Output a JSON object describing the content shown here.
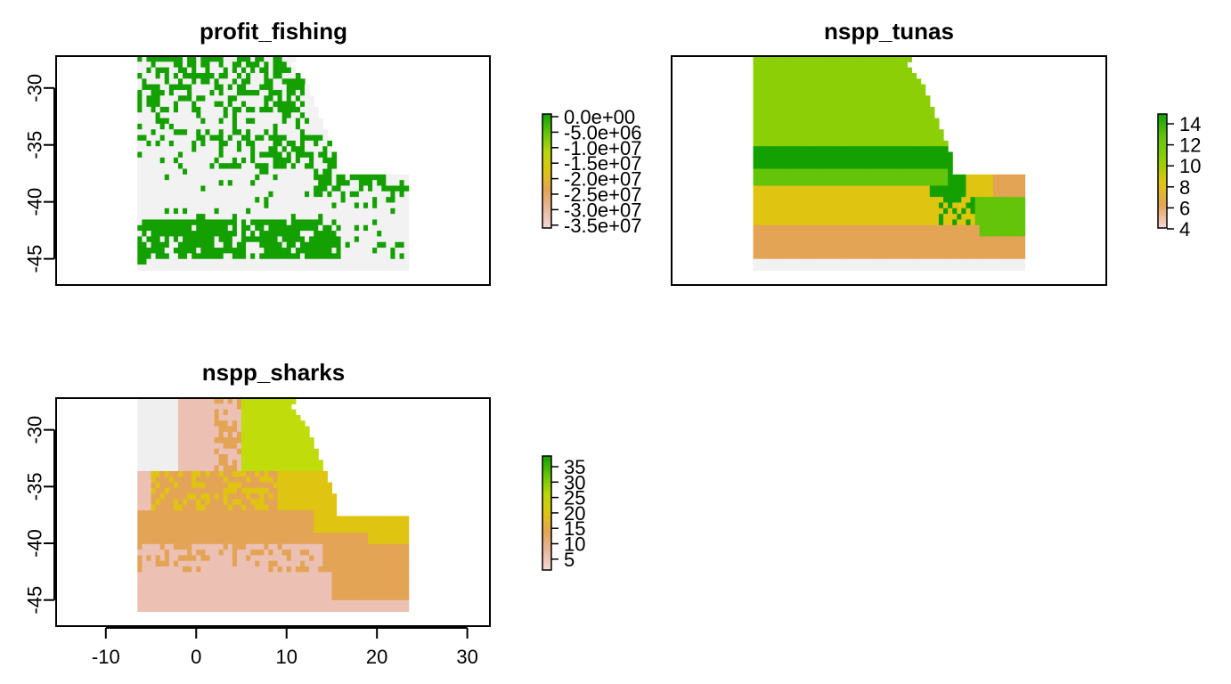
{
  "chart_data": [
    {
      "type": "heatmap",
      "title": "profit_fishing",
      "yticks": [
        -30,
        -35,
        -40,
        -45
      ],
      "ylim": [
        -47.3,
        -27.2
      ],
      "xlim": [
        -15.5,
        32.5
      ],
      "legend": {
        "ticks": [
          "0.0e+00",
          "-5.0e+06",
          "-1.0e+07",
          "-1.5e+07",
          "-2.0e+07",
          "-2.5e+07",
          "-3.0e+07",
          "-3.5e+07"
        ],
        "range": [
          -37000000,
          0
        ],
        "colors": [
          "#f4d7d7",
          "#e8b89c",
          "#e3a456",
          "#dfc412",
          "#b8d80a",
          "#63c40a",
          "#13a000"
        ]
      },
      "value_classes": [
        {
          "value": -37000000,
          "color": "#f2f2f2"
        },
        {
          "value": 0,
          "color": "#13a000"
        }
      ]
    },
    {
      "type": "heatmap",
      "title": "nspp_tunas",
      "ylim": [
        -47.3,
        -27.2
      ],
      "xlim": [
        -15.5,
        32.5
      ],
      "legend": {
        "ticks": [
          "14",
          "12",
          "10",
          "8",
          "6",
          "4"
        ],
        "range": [
          4,
          15
        ],
        "colors": [
          "#f4d7d7",
          "#e3a456",
          "#dfc412",
          "#8ccf06",
          "#63c40a",
          "#13a000"
        ]
      },
      "value_classes": [
        {
          "value": 15,
          "color": "#13a000"
        },
        {
          "value": 13,
          "color": "#63c40a"
        },
        {
          "value": 12,
          "color": "#8ccf06"
        },
        {
          "value": 9,
          "color": "#dfc412"
        },
        {
          "value": 7,
          "color": "#e3a456"
        },
        {
          "value": 4,
          "color": "#f2f2f2"
        }
      ]
    },
    {
      "type": "heatmap",
      "title": "nspp_sharks",
      "yticks": [
        -30,
        -35,
        -40,
        -45
      ],
      "xticks": [
        -10,
        0,
        10,
        20,
        30
      ],
      "ylim": [
        -47.3,
        -27.2
      ],
      "xlim": [
        -15.5,
        32.5
      ],
      "legend": {
        "ticks": [
          "35",
          "30",
          "25",
          "20",
          "15",
          "10",
          "5"
        ],
        "range": [
          2,
          38
        ],
        "colors": [
          "#f4d7d7",
          "#e8b89c",
          "#e3a456",
          "#dfc412",
          "#b8d80a",
          "#63c40a",
          "#13a000"
        ]
      },
      "value_classes": [
        {
          "value": 3,
          "color": "#efefef"
        },
        {
          "value": 6,
          "color": "#ecc0b2"
        },
        {
          "value": 12,
          "color": "#e3a456"
        },
        {
          "value": 20,
          "color": "#dfc412"
        },
        {
          "value": 24,
          "color": "#c0dc0a"
        }
      ]
    }
  ]
}
